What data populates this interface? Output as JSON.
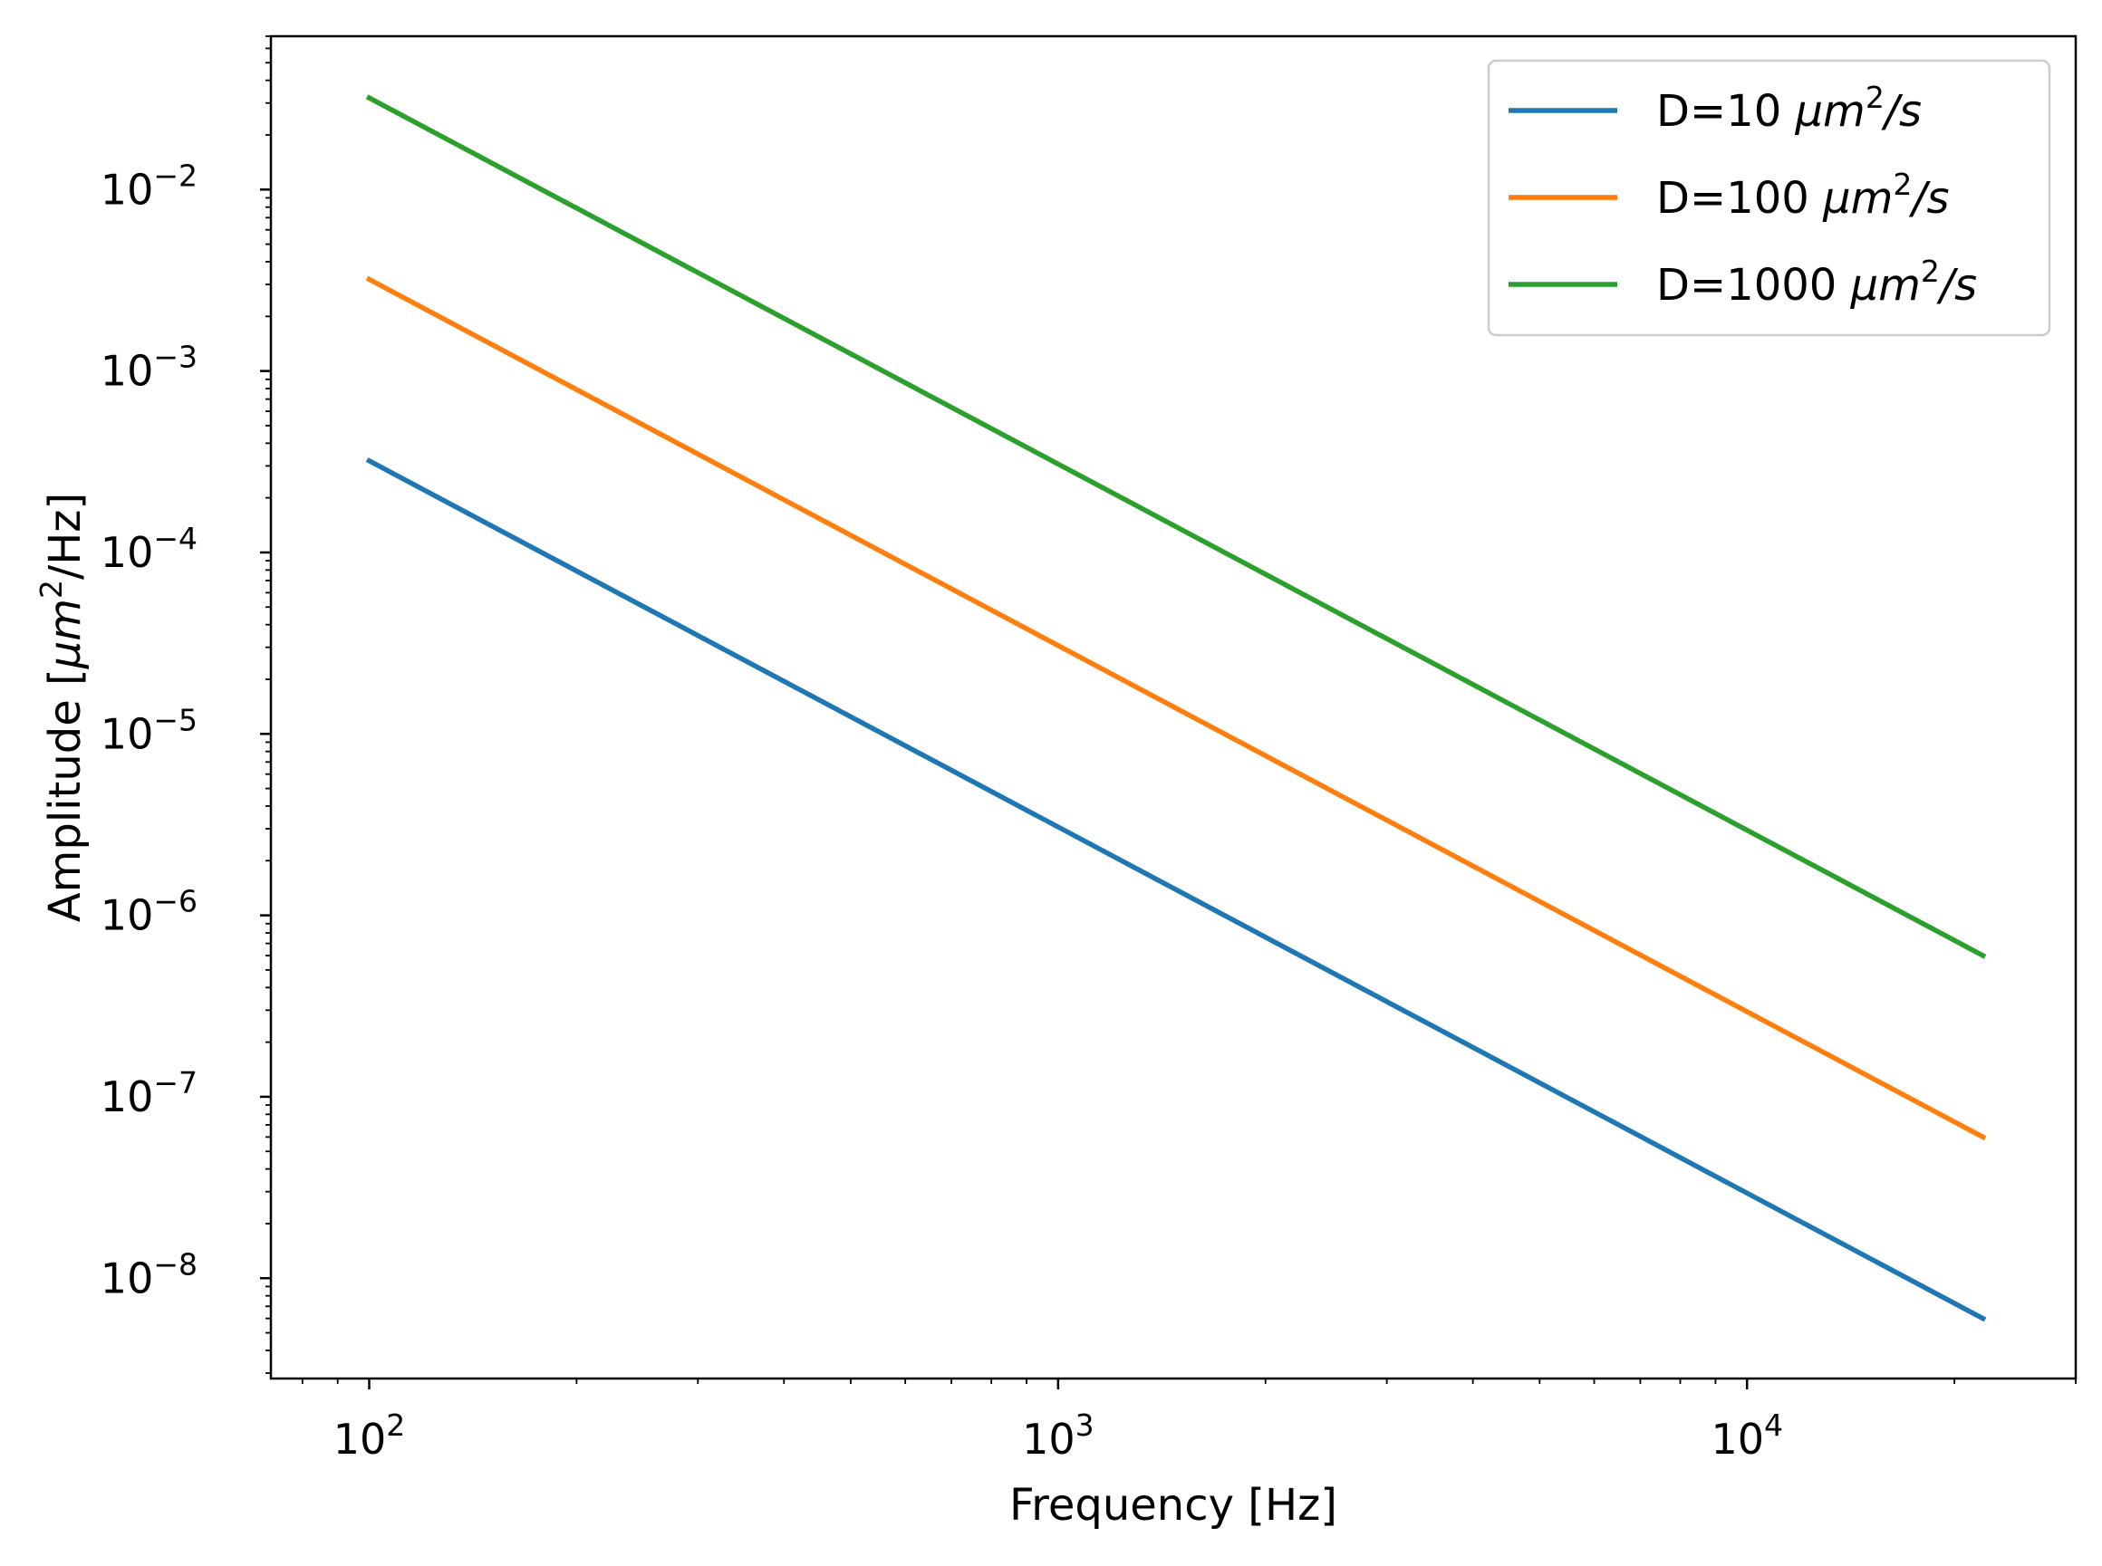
{
  "chart_data": {
    "type": "line",
    "title": "",
    "xlabel": "Frequency [Hz]",
    "ylabel": "Amplitude [μm²/Hz]",
    "xscale": "log",
    "yscale": "log",
    "xlim": [
      72,
      30000
    ],
    "ylim": [
      2.8e-09,
      0.07
    ],
    "grid": false,
    "legend_position": "top-right",
    "x": [
      100,
      22000
    ],
    "xticks": [
      {
        "base": "10",
        "exp": "2"
      },
      {
        "base": "10",
        "exp": "3"
      },
      {
        "base": "10",
        "exp": "4"
      }
    ],
    "yticks": [
      {
        "base": "10",
        "exp": "−2"
      },
      {
        "base": "10",
        "exp": "−3"
      },
      {
        "base": "10",
        "exp": "−4"
      },
      {
        "base": "10",
        "exp": "−5"
      },
      {
        "base": "10",
        "exp": "−6"
      },
      {
        "base": "10",
        "exp": "−7"
      },
      {
        "base": "10",
        "exp": "−8"
      }
    ],
    "series": [
      {
        "name": "D=10 μm²/s",
        "legend_prefix": "D=10 ",
        "legend_unit": "μm",
        "legend_sup": "2",
        "legend_suffix": "/s",
        "color": "#1f77b4",
        "values": [
          0.00032,
          6e-09
        ]
      },
      {
        "name": "D=100 μm²/s",
        "legend_prefix": "D=100 ",
        "legend_unit": "μm",
        "legend_sup": "2",
        "legend_suffix": "/s",
        "color": "#ff7f0e",
        "values": [
          0.0032,
          6e-08
        ]
      },
      {
        "name": "D=1000 μm²/s",
        "legend_prefix": "D=1000 ",
        "legend_unit": "μm",
        "legend_sup": "2",
        "legend_suffix": "/s",
        "color": "#2ca02c",
        "values": [
          0.032,
          6e-07
        ]
      }
    ]
  }
}
